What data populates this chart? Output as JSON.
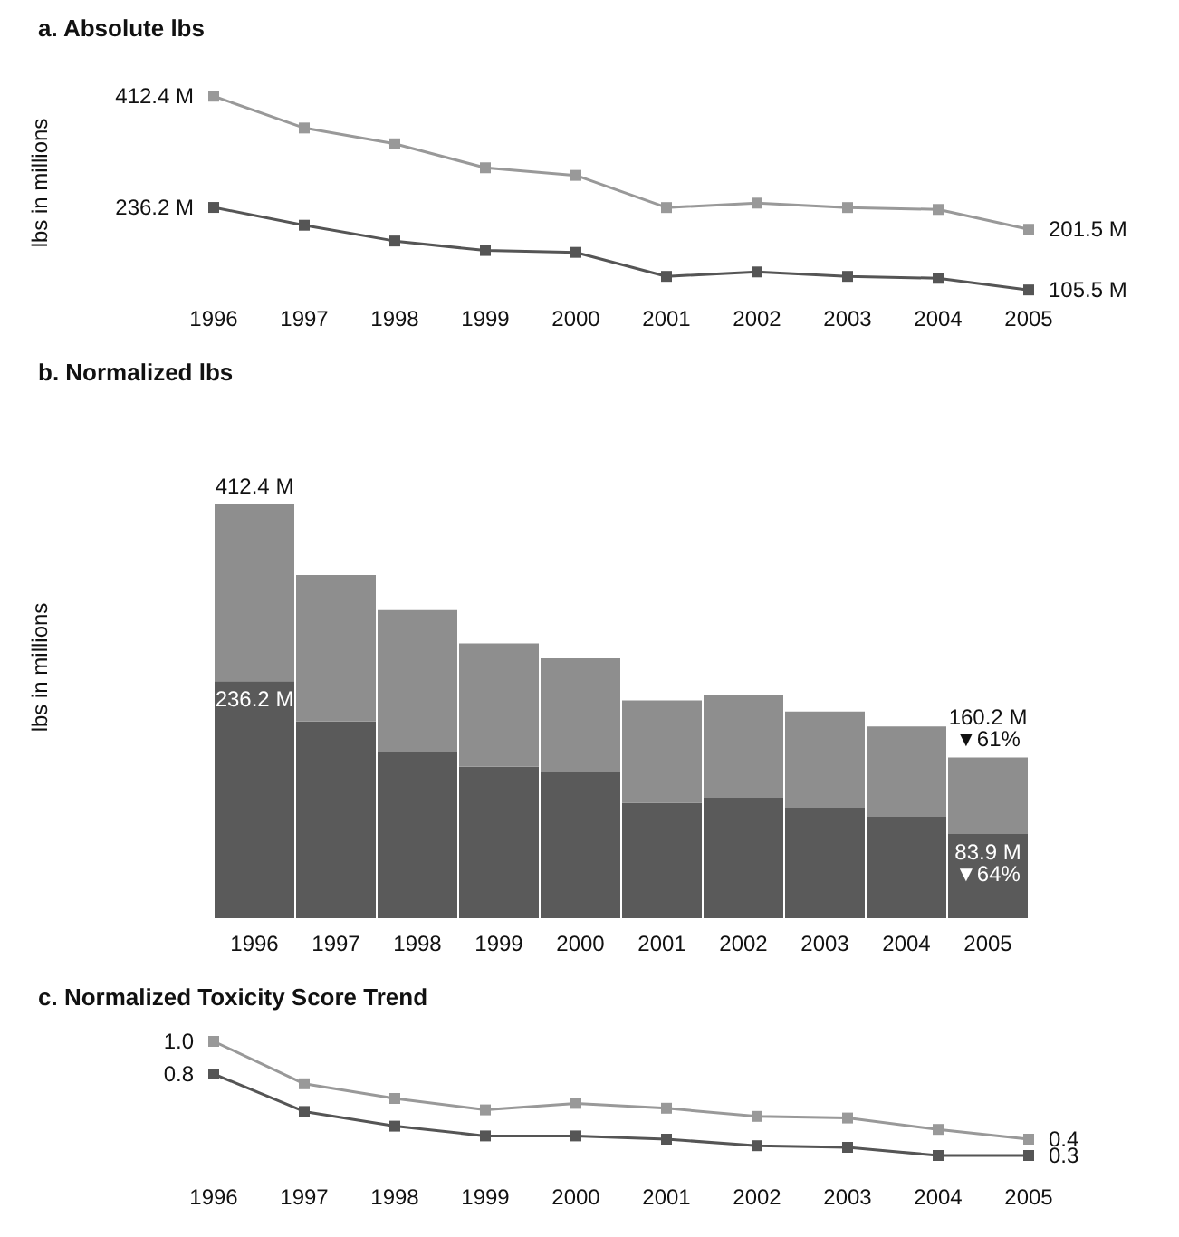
{
  "chart_data": [
    {
      "type": "line",
      "title": "a. Absolute lbs",
      "ylabel": "lbs in millions",
      "categories": [
        "1996",
        "1997",
        "1998",
        "1999",
        "2000",
        "2001",
        "2002",
        "2003",
        "2004",
        "2005"
      ],
      "marker": "square",
      "tick_labels": "x",
      "series": [
        {
          "color": "#999999",
          "values": [
            412.4,
            362,
            337,
            299,
            287,
            236,
            243,
            236,
            233,
            201.5
          ],
          "value_labels": [
            "412.4 M",
            null,
            null,
            null,
            null,
            null,
            null,
            null,
            null,
            "201.5 M"
          ]
        },
        {
          "color": "#555555",
          "values": [
            236.2,
            208,
            183,
            168,
            165,
            127,
            134,
            127,
            124,
            105.5
          ],
          "value_labels": [
            "236.2 M",
            null,
            null,
            null,
            null,
            null,
            null,
            null,
            null,
            "105.5 M"
          ]
        }
      ]
    },
    {
      "type": "bar",
      "title": "b. Normalized lbs",
      "ylabel": "lbs in millions",
      "stacked": true,
      "tick_labels": "x",
      "categories": [
        "1996",
        "1997",
        "1998",
        "1999",
        "2000",
        "2001",
        "2002",
        "2003",
        "2004",
        "2005"
      ],
      "series": [
        {
          "color": "#5a5a5a",
          "values": [
            236.2,
            196,
            166,
            151,
            146,
            115,
            120,
            110,
            101,
            83.9
          ],
          "value_labels": [
            "236.2 M",
            null,
            null,
            null,
            null,
            null,
            null,
            null,
            null,
            "83.9 M\n▼64%"
          ]
        },
        {
          "color": "#8e8e8e",
          "values": [
            176.2,
            146,
            141,
            123,
            113,
            102,
            102,
            96,
            90,
            76.3
          ]
        }
      ],
      "totals": [
        "412.4 M",
        null,
        null,
        null,
        null,
        null,
        null,
        null,
        null,
        "160.2 M\n▼61%"
      ]
    },
    {
      "type": "line",
      "title": "c. Normalized Toxicity Score Trend",
      "categories": [
        "1996",
        "1997",
        "1998",
        "1999",
        "2000",
        "2001",
        "2002",
        "2003",
        "2004",
        "2005"
      ],
      "marker": "square",
      "tick_labels": "x",
      "series": [
        {
          "color": "#999999",
          "values": [
            1.0,
            0.74,
            0.65,
            0.58,
            0.62,
            0.59,
            0.54,
            0.53,
            0.46,
            0.4
          ],
          "value_labels": [
            "1.0",
            null,
            null,
            null,
            null,
            null,
            null,
            null,
            null,
            "0.4"
          ]
        },
        {
          "color": "#555555",
          "values": [
            0.8,
            0.57,
            0.48,
            0.42,
            0.42,
            0.4,
            0.36,
            0.35,
            0.3,
            0.3
          ],
          "value_labels": [
            "0.8",
            null,
            null,
            null,
            null,
            null,
            null,
            null,
            null,
            "0.3"
          ]
        }
      ]
    }
  ]
}
